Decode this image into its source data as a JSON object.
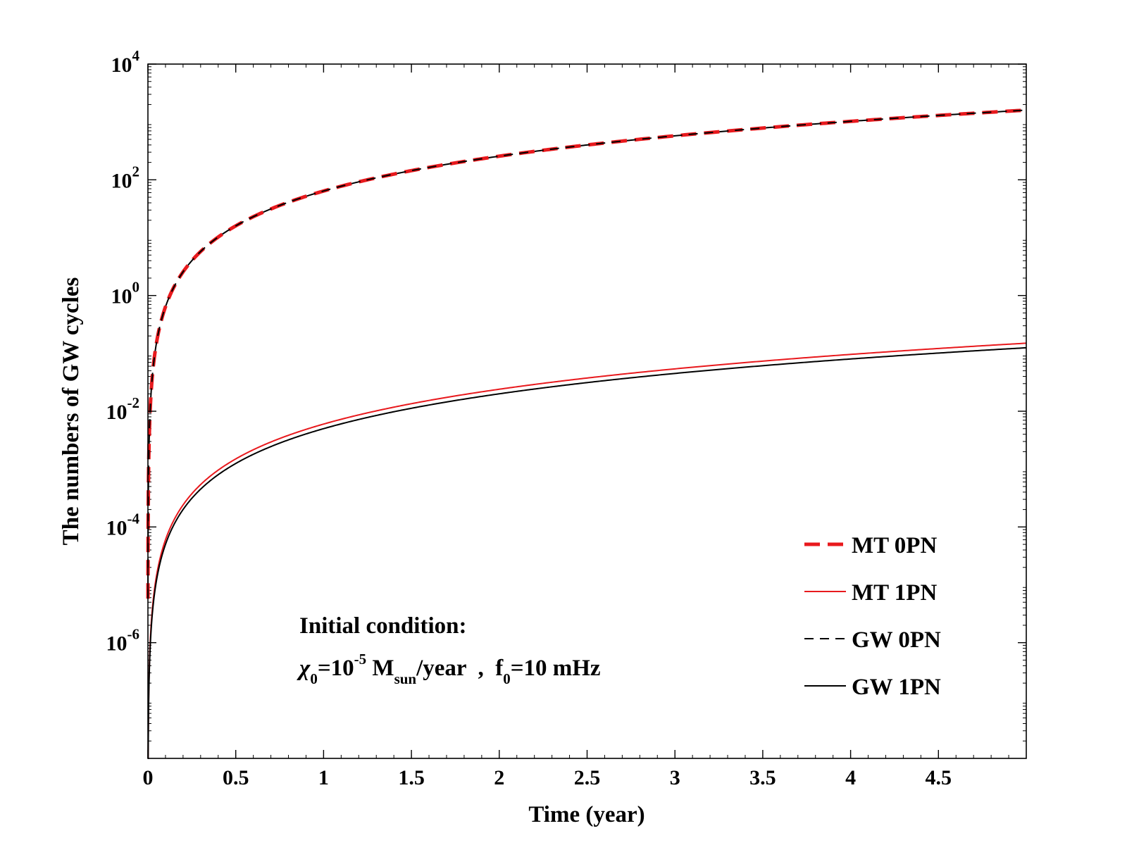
{
  "chart_data": {
    "type": "line",
    "title": "",
    "xlabel": "Time (year)",
    "ylabel": "The numbers of GW cycles",
    "xlim": [
      0,
      5
    ],
    "ylim_exp": [
      -8,
      4
    ],
    "yscale": "log",
    "x_ticks": [
      {
        "value": 0,
        "label": "0"
      },
      {
        "value": 0.5,
        "label": "0.5"
      },
      {
        "value": 1,
        "label": "1"
      },
      {
        "value": 1.5,
        "label": "1.5"
      },
      {
        "value": 2,
        "label": "2"
      },
      {
        "value": 2.5,
        "label": "2.5"
      },
      {
        "value": 3,
        "label": "3"
      },
      {
        "value": 3.5,
        "label": "3.5"
      },
      {
        "value": 4,
        "label": "4"
      },
      {
        "value": 4.5,
        "label": "4.5"
      }
    ],
    "y_ticks": [
      {
        "exp": 4,
        "base": "10",
        "sup": "4"
      },
      {
        "exp": 2,
        "base": "10",
        "sup": "2"
      },
      {
        "exp": 0,
        "base": "10",
        "sup": "0"
      },
      {
        "exp": -2,
        "base": "10",
        "sup": "-2"
      },
      {
        "exp": -4,
        "base": "10",
        "sup": "-4"
      },
      {
        "exp": -6,
        "base": "10",
        "sup": "-6"
      }
    ],
    "series": [
      {
        "name": "MT 0PN",
        "color": "#e8191d",
        "style": "dashed-thick",
        "model": "power",
        "y_at_1yr": 64,
        "exponent": 2.0
      },
      {
        "name": "MT 1PN",
        "color": "#e8191d",
        "style": "solid-thin",
        "model": "power",
        "y_at_1yr": 0.006,
        "exponent": 2.0
      },
      {
        "name": "GW 0PN",
        "color": "#000000",
        "style": "dashed-thin",
        "model": "power",
        "y_at_1yr": 64,
        "exponent": 2.0
      },
      {
        "name": "GW 1PN",
        "color": "#000000",
        "style": "solid-thin",
        "model": "power",
        "y_at_1yr": 0.005,
        "exponent": 2.0
      }
    ],
    "sample_points": {
      "MT 0PN": [
        [
          0.1,
          0.64
        ],
        [
          0.5,
          16
        ],
        [
          1,
          64
        ],
        [
          2,
          256
        ],
        [
          3,
          576
        ],
        [
          4,
          1024
        ],
        [
          5,
          1600
        ]
      ],
      "MT 1PN": [
        [
          0.1,
          6e-05
        ],
        [
          0.5,
          0.0015
        ],
        [
          1,
          0.006
        ],
        [
          2,
          0.024
        ],
        [
          3,
          0.054
        ],
        [
          4,
          0.096
        ],
        [
          5,
          0.15
        ]
      ],
      "GW 0PN": [
        [
          0.1,
          0.64
        ],
        [
          0.5,
          16
        ],
        [
          1,
          64
        ],
        [
          2,
          256
        ],
        [
          3,
          576
        ],
        [
          4,
          1024
        ],
        [
          5,
          1600
        ]
      ],
      "GW 1PN": [
        [
          0.1,
          5e-05
        ],
        [
          0.5,
          0.00125
        ],
        [
          1,
          0.005
        ],
        [
          2,
          0.02
        ],
        [
          3,
          0.045
        ],
        [
          4,
          0.08
        ],
        [
          5,
          0.125
        ]
      ]
    },
    "legend_position": "bottom-right",
    "grid": false,
    "annotation": {
      "line1": "Initial condition:",
      "chi": "χ",
      "chi_sub": "0",
      "eq1": "=10",
      "exp1": "-5",
      "msun": " M",
      "msun_sub": "sun",
      "rate": "/year  ,  f",
      "f_sub": "0",
      "freq": "=10 mHz"
    }
  }
}
